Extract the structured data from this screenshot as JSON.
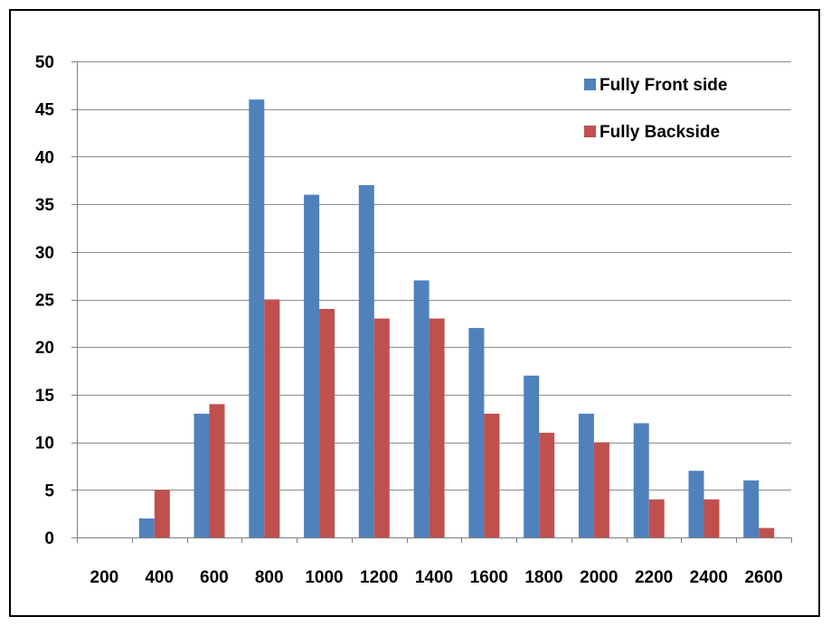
{
  "chart_data": {
    "type": "bar",
    "categories": [
      "200",
      "400",
      "600",
      "800",
      "1000",
      "1200",
      "1400",
      "1600",
      "1800",
      "2000",
      "2200",
      "2400",
      "2600"
    ],
    "series": [
      {
        "name": "Fully Front side",
        "color": "#4F81BD",
        "values": [
          0,
          2,
          13,
          46,
          36,
          37,
          27,
          22,
          17,
          13,
          12,
          7,
          6
        ]
      },
      {
        "name": "Fully Backside",
        "color": "#C0504D",
        "values": [
          0,
          5,
          14,
          25,
          24,
          23,
          23,
          13,
          11,
          10,
          4,
          4,
          1
        ]
      }
    ],
    "ylim": [
      0,
      50
    ],
    "yticks": [
      "0",
      "5",
      "10",
      "15",
      "20",
      "25",
      "30",
      "35",
      "40",
      "45",
      "50"
    ],
    "ytick_values": [
      0,
      5,
      10,
      15,
      20,
      25,
      30,
      35,
      40,
      45,
      50
    ],
    "grid": true,
    "grid_color": "#8C8C8C",
    "legend_position": "top-right"
  }
}
